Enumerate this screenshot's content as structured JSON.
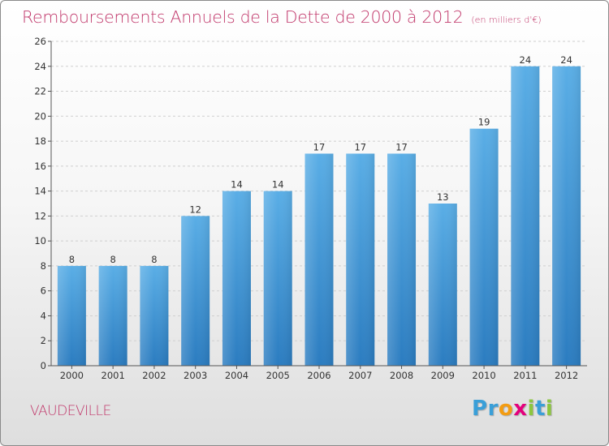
{
  "title": "Remboursements Annuels de la Dette de 2000 à 2012",
  "unit_note": "(en milliers d'€)",
  "commune": "VAUDEVILLE",
  "logo": {
    "text": "Proxiti",
    "letters": [
      {
        "ch": "P",
        "color": "#3a9fd8"
      },
      {
        "ch": "r",
        "color": "#3a9fd8"
      },
      {
        "ch": "o",
        "color": "#f39c12"
      },
      {
        "ch": "x",
        "color": "#e4007c"
      },
      {
        "ch": "i",
        "color": "#8cc63f"
      },
      {
        "ch": "t",
        "color": "#3a9fd8"
      },
      {
        "ch": "i",
        "color": "#8cc63f"
      }
    ]
  },
  "colors": {
    "title": "#c1386b",
    "bar_top": "#5aaee6",
    "bar_bottom": "#2b7cc0",
    "grid": "#cfcfcf",
    "axis": "#555555"
  },
  "chart_data": {
    "type": "bar",
    "categories": [
      "2000",
      "2001",
      "2002",
      "2003",
      "2004",
      "2005",
      "2006",
      "2007",
      "2008",
      "2009",
      "2010",
      "2011",
      "2012"
    ],
    "values": [
      8,
      8,
      8,
      12,
      14,
      14,
      17,
      17,
      17,
      13,
      19,
      24,
      24
    ],
    "ylim": [
      0,
      26
    ],
    "yticks": [
      0,
      2,
      4,
      6,
      8,
      10,
      12,
      14,
      16,
      18,
      20,
      22,
      24,
      26
    ],
    "grid": true,
    "data_labels": true
  }
}
